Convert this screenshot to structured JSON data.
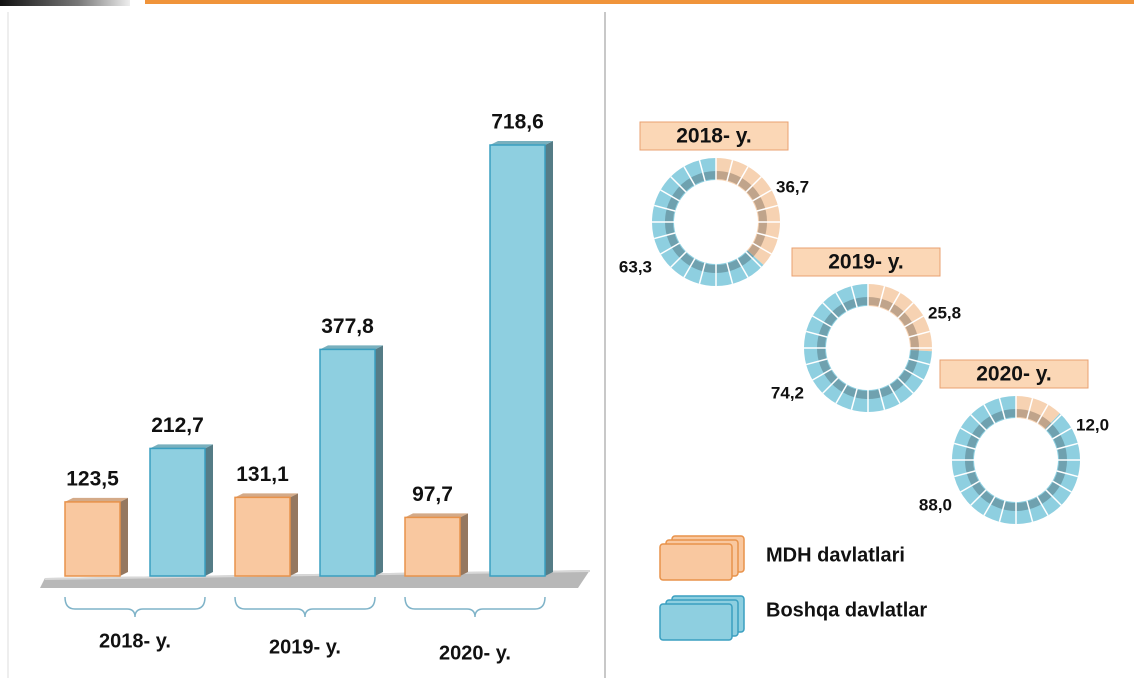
{
  "chart_data": [
    {
      "type": "bar",
      "categories": [
        "2018- y.",
        "2019- y.",
        "2020- y."
      ],
      "series": [
        {
          "name": "MDH davlatlari",
          "color": "#f9c8a0",
          "values": [
            123.5,
            131.1,
            97.7
          ],
          "value_labels": [
            "123,5",
            "131,1",
            "97,7"
          ]
        },
        {
          "name": "Boshqa davlatlar",
          "color": "#8ecfe0",
          "values": [
            212.7,
            377.8,
            718.6
          ],
          "value_labels": [
            "212,7",
            "377,8",
            "718,6"
          ]
        }
      ]
    },
    {
      "type": "pie",
      "title": "2018- y.",
      "values": [
        36.7,
        63.3
      ],
      "value_labels": [
        "36,7",
        "63,3"
      ],
      "colors": [
        "#f6d2b2",
        "#8ecfe0"
      ]
    },
    {
      "type": "pie",
      "title": "2019- y.",
      "values": [
        25.8,
        74.2
      ],
      "value_labels": [
        "25,8",
        "74,2"
      ],
      "colors": [
        "#f6d2b2",
        "#8ecfe0"
      ]
    },
    {
      "type": "pie",
      "title": "2020- y.",
      "values": [
        12.0,
        88.0
      ],
      "value_labels": [
        "12,0",
        "88,0"
      ],
      "colors": [
        "#f6d2b2",
        "#8ecfe0"
      ]
    }
  ]
}
